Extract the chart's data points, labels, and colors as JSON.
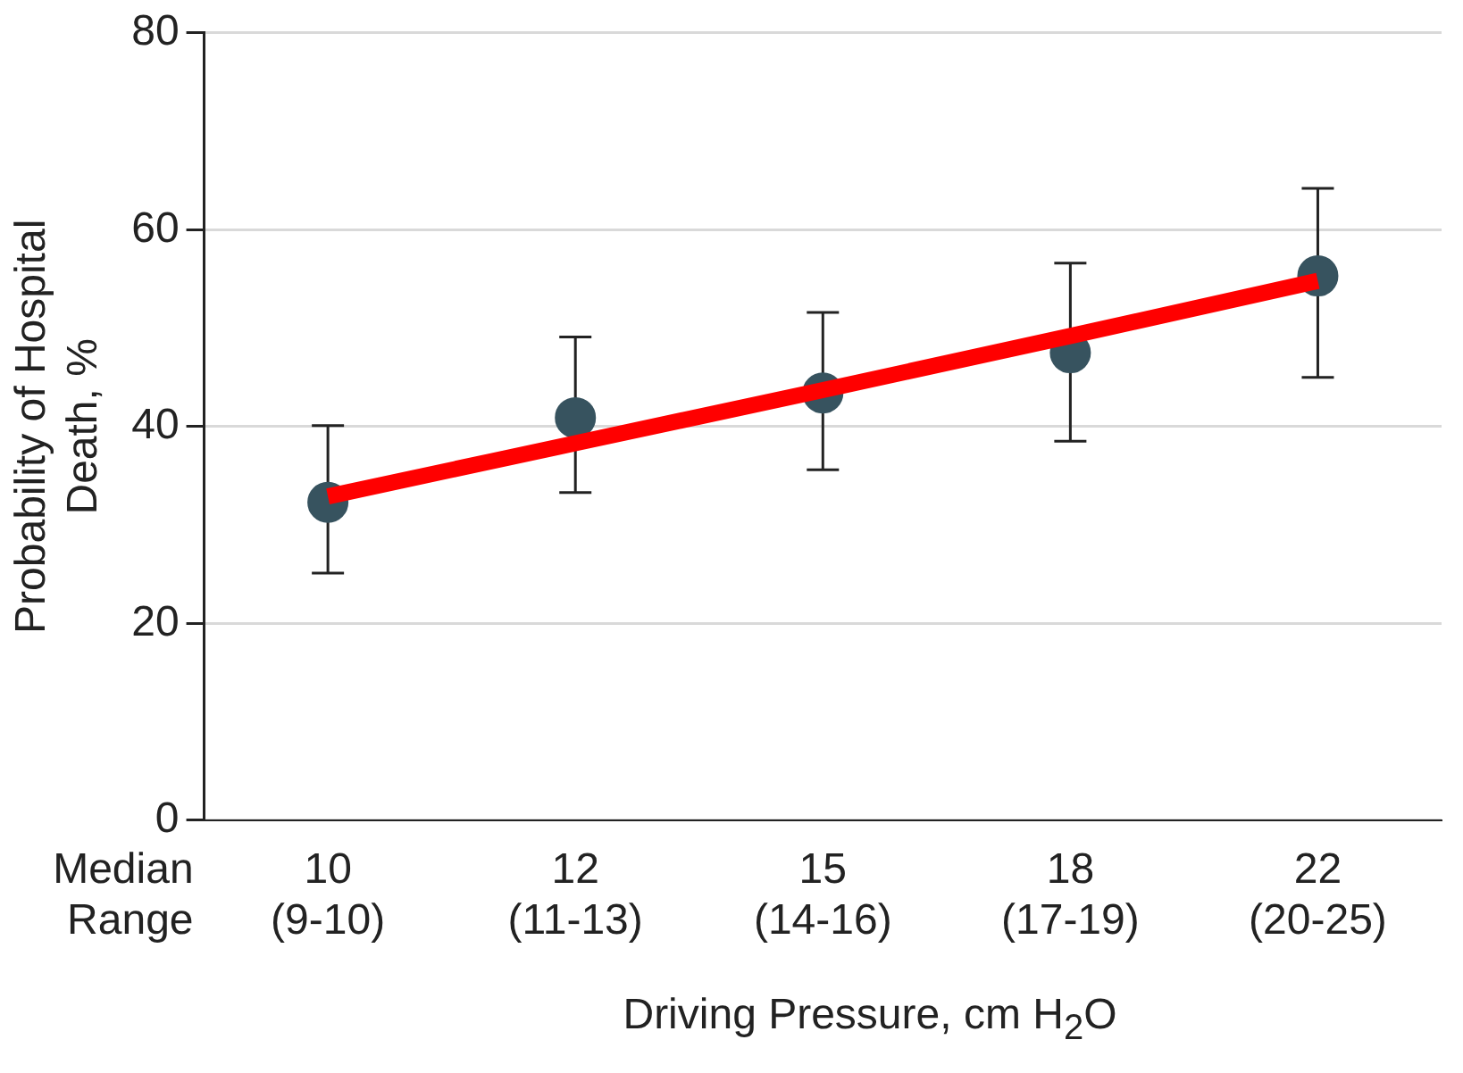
{
  "chart_data": {
    "type": "scatter",
    "ylabel": "Probability of Hospital\nDeath, %",
    "xlabel": "Driving Pressure, cm H$_{2}$O",
    "categories": [
      "10\n(9-10)",
      "12\n(11-13)",
      "15\n(14-16)",
      "18\n(17-19)",
      "22\n(20-25)"
    ],
    "series": [
      {
        "color": "#37535f",
        "marker": "circle",
        "values": [
          32.3,
          40.9,
          43.4,
          47.5,
          55.3
        ],
        "errors": [
          [
            25.1,
            40.1
          ],
          [
            33.3,
            49.1
          ],
          [
            35.6,
            51.6
          ],
          [
            38.5,
            56.6
          ],
          [
            45.0,
            64.2
          ]
        ]
      },
      {
        "type": "line",
        "color": "#ff0000",
        "values": [
          32.9,
          38.3,
          43.7,
          49.2,
          54.8
        ]
      }
    ],
    "ylim": [
      0,
      80
    ],
    "yticks": [
      0,
      20,
      40,
      60,
      80
    ],
    "grid": "y",
    "legend": false,
    "annotations": [
      "Median",
      "Range"
    ]
  }
}
